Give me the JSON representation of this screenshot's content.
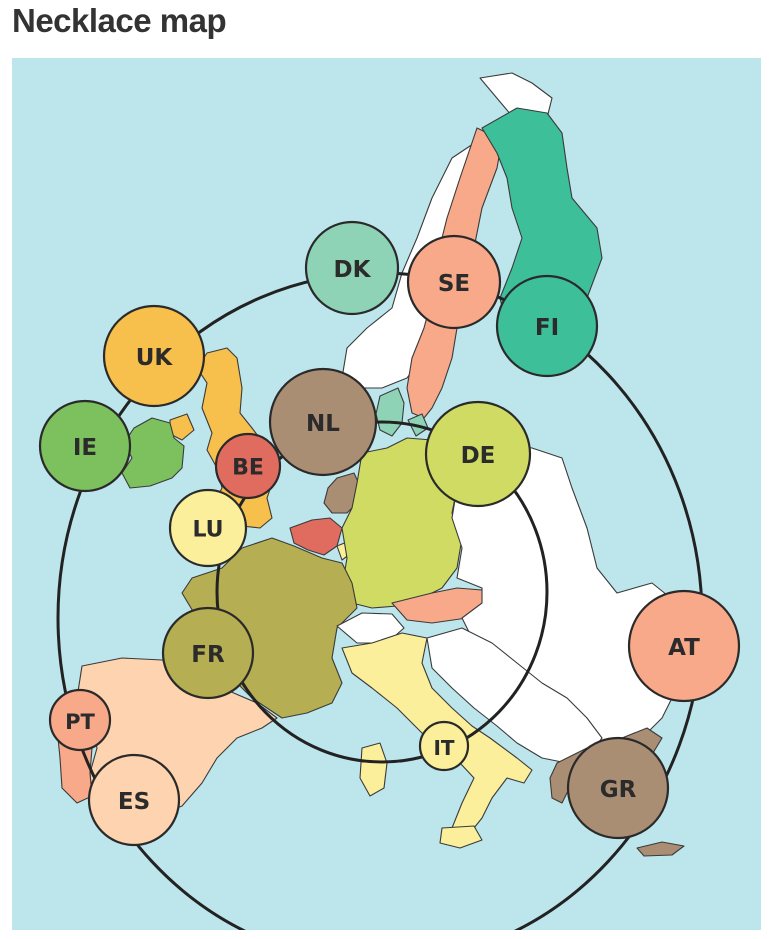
{
  "title": "Necklace map",
  "colors": {
    "water": "#bde6ec",
    "land_other": "#ffffff",
    "ring": "#222222"
  },
  "countries": [
    {
      "code": "DK",
      "color": "#8fd3b6"
    },
    {
      "code": "SE",
      "color": "#f7a98a"
    },
    {
      "code": "FI",
      "color": "#3dbf99"
    },
    {
      "code": "UK",
      "color": "#f7bf4c"
    },
    {
      "code": "IE",
      "color": "#7cc15e"
    },
    {
      "code": "NL",
      "color": "#a98e74"
    },
    {
      "code": "BE",
      "color": "#e06b5f"
    },
    {
      "code": "DE",
      "color": "#cfdb62"
    },
    {
      "code": "LU",
      "color": "#fbef9b"
    },
    {
      "code": "FR",
      "color": "#b6ae52"
    },
    {
      "code": "AT",
      "color": "#f7a98a"
    },
    {
      "code": "PT",
      "color": "#f7a98a"
    },
    {
      "code": "ES",
      "color": "#fdd3b0"
    },
    {
      "code": "IT",
      "color": "#fbef9b"
    },
    {
      "code": "GR",
      "color": "#a98e74"
    }
  ]
}
